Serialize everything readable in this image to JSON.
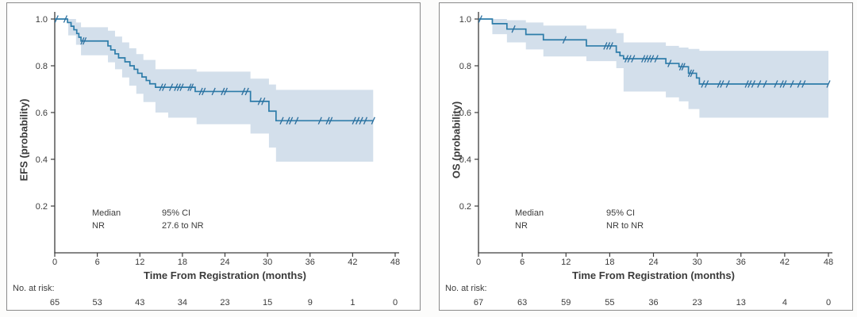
{
  "colors": {
    "line": "#2d7ca9",
    "censor": "#2c6f9e",
    "band": "#d3dfeb",
    "axis": "#3d3d3d",
    "text": "#3b3b3b",
    "panel_border": "#8a8a8a"
  },
  "chart_data": [
    {
      "type": "line",
      "subtype": "kaplan-meier-step",
      "title": "",
      "ylabel": "EFS (probability)",
      "xlabel": "Time From Registration (months)",
      "xticks": [
        0,
        6,
        12,
        18,
        24,
        30,
        36,
        42,
        48
      ],
      "yticks": [
        "0.2",
        "0.4",
        "0.6",
        "0.8",
        "1.0"
      ],
      "xlim": [
        0,
        48
      ],
      "ylim": [
        0,
        1.02
      ],
      "grid": false,
      "legend": "none",
      "stats": {
        "median_label": "Median",
        "median_value": "NR",
        "ci_label": "95% CI",
        "ci_value": "27.6 to NR"
      },
      "risk_label": "No. at risk:",
      "risk_counts": [
        65,
        53,
        43,
        34,
        23,
        15,
        9,
        1,
        0
      ],
      "curve_end": 44.9,
      "steps": [
        [
          0,
          1.0
        ],
        [
          1.8,
          0.985
        ],
        [
          2.3,
          0.969
        ],
        [
          2.7,
          0.954
        ],
        [
          3.1,
          0.938
        ],
        [
          3.4,
          0.922
        ],
        [
          3.7,
          0.906
        ],
        [
          7.5,
          0.885
        ],
        [
          7.9,
          0.868
        ],
        [
          8.5,
          0.851
        ],
        [
          9.0,
          0.834
        ],
        [
          9.9,
          0.817
        ],
        [
          10.6,
          0.8
        ],
        [
          11.2,
          0.785
        ],
        [
          11.7,
          0.768
        ],
        [
          12.3,
          0.752
        ],
        [
          12.9,
          0.737
        ],
        [
          13.4,
          0.723
        ],
        [
          14.2,
          0.708
        ],
        [
          19.8,
          0.69
        ],
        [
          27.6,
          0.648
        ],
        [
          30.2,
          0.606
        ],
        [
          31.2,
          0.565
        ]
      ],
      "censors": [
        [
          0.25,
          1.0
        ],
        [
          1.5,
          1.0
        ],
        [
          3.9,
          0.906
        ],
        [
          4.2,
          0.906
        ],
        [
          15.0,
          0.708
        ],
        [
          15.4,
          0.708
        ],
        [
          16.4,
          0.708
        ],
        [
          17.1,
          0.708
        ],
        [
          17.5,
          0.708
        ],
        [
          17.9,
          0.708
        ],
        [
          19.0,
          0.708
        ],
        [
          19.3,
          0.708
        ],
        [
          20.6,
          0.69
        ],
        [
          21.0,
          0.69
        ],
        [
          22.4,
          0.69
        ],
        [
          23.7,
          0.69
        ],
        [
          24.1,
          0.69
        ],
        [
          26.6,
          0.69
        ],
        [
          27.1,
          0.69
        ],
        [
          28.9,
          0.648
        ],
        [
          29.4,
          0.648
        ],
        [
          32.0,
          0.565
        ],
        [
          32.9,
          0.565
        ],
        [
          33.3,
          0.565
        ],
        [
          34.1,
          0.565
        ],
        [
          37.4,
          0.565
        ],
        [
          38.5,
          0.565
        ],
        [
          38.9,
          0.565
        ],
        [
          42.2,
          0.565
        ],
        [
          42.7,
          0.565
        ],
        [
          43.2,
          0.565
        ],
        [
          43.8,
          0.565
        ],
        [
          44.9,
          0.565
        ]
      ],
      "band_upper": [
        [
          1.9,
          1.0
        ],
        [
          3.0,
          0.985
        ],
        [
          3.7,
          0.965
        ],
        [
          7.5,
          0.95
        ],
        [
          8.5,
          0.925
        ],
        [
          9.5,
          0.9
        ],
        [
          10.5,
          0.875
        ],
        [
          11.5,
          0.85
        ],
        [
          12.5,
          0.825
        ],
        [
          14.2,
          0.785
        ],
        [
          20.0,
          0.775
        ],
        [
          27.6,
          0.745
        ],
        [
          30.2,
          0.72
        ],
        [
          31.2,
          0.697
        ]
      ],
      "band_lower": [
        [
          1.9,
          0.93
        ],
        [
          3.0,
          0.89
        ],
        [
          3.7,
          0.845
        ],
        [
          7.5,
          0.815
        ],
        [
          8.5,
          0.785
        ],
        [
          9.5,
          0.75
        ],
        [
          10.5,
          0.715
        ],
        [
          11.5,
          0.68
        ],
        [
          12.5,
          0.645
        ],
        [
          14.2,
          0.6
        ],
        [
          16.0,
          0.578
        ],
        [
          20.0,
          0.55
        ],
        [
          27.6,
          0.51
        ],
        [
          30.2,
          0.45
        ],
        [
          31.2,
          0.39
        ]
      ]
    },
    {
      "type": "line",
      "subtype": "kaplan-meier-step",
      "title": "",
      "ylabel": "OS (probability)",
      "xlabel": "Time From Registration (months)",
      "xticks": [
        0,
        6,
        12,
        18,
        24,
        30,
        36,
        42,
        48
      ],
      "yticks": [
        "0.2",
        "0.4",
        "0.6",
        "0.8",
        "1.0"
      ],
      "xlim": [
        0,
        48
      ],
      "ylim": [
        0,
        1.02
      ],
      "grid": false,
      "legend": "none",
      "stats": {
        "median_label": "Median",
        "median_value": "NR",
        "ci_label": "95% CI",
        "ci_value": "NR to NR"
      },
      "risk_label": "No. at risk:",
      "risk_counts": [
        67,
        63,
        59,
        55,
        36,
        23,
        13,
        4,
        0
      ],
      "curve_end": 48,
      "steps": [
        [
          0,
          1.0
        ],
        [
          1.9,
          0.98
        ],
        [
          3.9,
          0.957
        ],
        [
          6.5,
          0.934
        ],
        [
          8.9,
          0.911
        ],
        [
          14.8,
          0.885
        ],
        [
          18.9,
          0.858
        ],
        [
          19.4,
          0.843
        ],
        [
          19.9,
          0.83
        ],
        [
          25.7,
          0.81
        ],
        [
          27.5,
          0.796
        ],
        [
          28.8,
          0.768
        ],
        [
          29.9,
          0.748
        ],
        [
          30.3,
          0.722
        ]
      ],
      "censors": [
        [
          0.25,
          1.0
        ],
        [
          4.8,
          0.957
        ],
        [
          11.8,
          0.911
        ],
        [
          17.4,
          0.885
        ],
        [
          17.8,
          0.885
        ],
        [
          18.2,
          0.885
        ],
        [
          20.3,
          0.83
        ],
        [
          20.7,
          0.83
        ],
        [
          21.2,
          0.83
        ],
        [
          22.6,
          0.83
        ],
        [
          23.0,
          0.83
        ],
        [
          23.4,
          0.83
        ],
        [
          23.8,
          0.83
        ],
        [
          24.4,
          0.83
        ],
        [
          26.2,
          0.81
        ],
        [
          27.8,
          0.796
        ],
        [
          28.1,
          0.796
        ],
        [
          29.0,
          0.768
        ],
        [
          29.3,
          0.768
        ],
        [
          30.8,
          0.722
        ],
        [
          31.3,
          0.722
        ],
        [
          33.0,
          0.722
        ],
        [
          33.4,
          0.722
        ],
        [
          34.2,
          0.722
        ],
        [
          36.8,
          0.722
        ],
        [
          37.2,
          0.722
        ],
        [
          37.7,
          0.722
        ],
        [
          38.5,
          0.722
        ],
        [
          39.3,
          0.722
        ],
        [
          40.8,
          0.722
        ],
        [
          41.6,
          0.722
        ],
        [
          42.0,
          0.722
        ],
        [
          43.0,
          0.722
        ],
        [
          44.0,
          0.722
        ],
        [
          44.6,
          0.722
        ],
        [
          48,
          0.722
        ]
      ],
      "band_upper": [
        [
          1.9,
          1.0
        ],
        [
          3.9,
          0.995
        ],
        [
          6.5,
          0.985
        ],
        [
          8.9,
          0.972
        ],
        [
          14.8,
          0.958
        ],
        [
          18.9,
          0.94
        ],
        [
          19.9,
          0.9
        ],
        [
          25.7,
          0.885
        ],
        [
          27.5,
          0.878
        ],
        [
          28.8,
          0.872
        ],
        [
          30.3,
          0.864
        ]
      ],
      "band_lower": [
        [
          1.9,
          0.935
        ],
        [
          3.9,
          0.9
        ],
        [
          6.5,
          0.87
        ],
        [
          8.9,
          0.84
        ],
        [
          14.8,
          0.82
        ],
        [
          18.9,
          0.79
        ],
        [
          19.9,
          0.69
        ],
        [
          25.7,
          0.665
        ],
        [
          27.5,
          0.648
        ],
        [
          28.8,
          0.615
        ],
        [
          30.3,
          0.578
        ]
      ]
    }
  ]
}
